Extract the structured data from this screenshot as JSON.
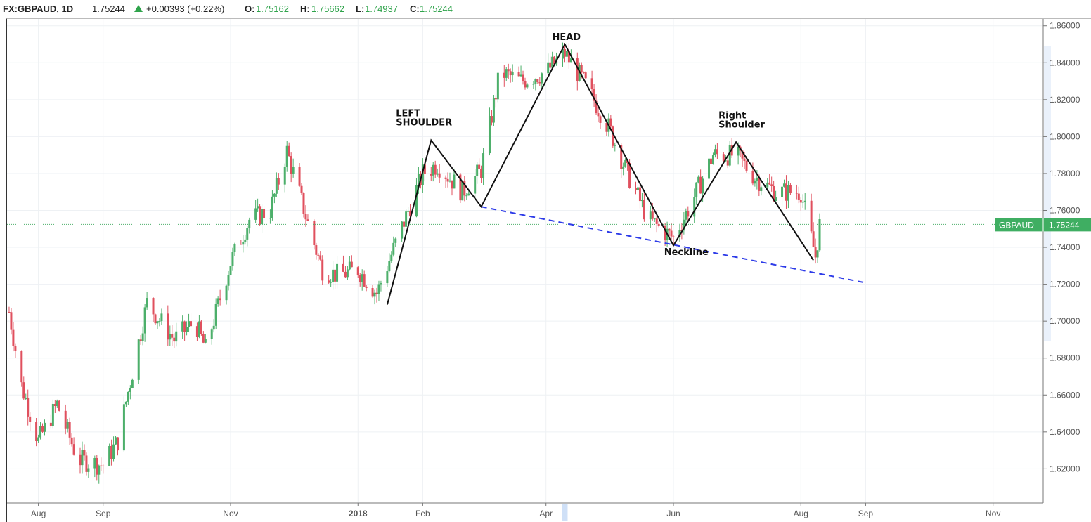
{
  "header": {
    "symbol": "FX:GBPAUD, 1D",
    "last": "1.75244",
    "change": "+0.00393 (+0.22%)",
    "o_label": "O:",
    "o_value": "1.75162",
    "h_label": "H:",
    "h_value": "1.75662",
    "l_label": "L:",
    "l_value": "1.74937",
    "c_label": "C:",
    "c_value": "1.75244"
  },
  "price_tag": {
    "label": "GBPAUD",
    "value": "1.75244"
  },
  "colors": {
    "up": "#4caf6a",
    "down": "#e0505e",
    "neckline": "#2d3be8",
    "grid": "#eef1f4"
  },
  "chart_data": {
    "type": "line",
    "title": "",
    "series": [
      {
        "name": "",
        "x": [
          "2017-07-18",
          "2017-07-24",
          "2017-08-01",
          "2017-08-10",
          "2017-08-20",
          "2017-09-01",
          "2017-09-08",
          "2017-09-22",
          "2017-10-05",
          "2017-10-15",
          "2017-10-20",
          "2017-11-01",
          "2017-11-10",
          "2017-11-20",
          "2017-11-28",
          "2017-12-05",
          "2017-12-10",
          "2017-12-15",
          "2017-12-22",
          "2018-01-01",
          "2018-01-10",
          "2018-01-20",
          "2018-02-01",
          "2018-02-08",
          "2018-02-20",
          "2018-03-01",
          "2018-03-10",
          "2018-03-20",
          "2018-04-01",
          "2018-04-10",
          "2018-04-20",
          "2018-05-01",
          "2018-05-10",
          "2018-05-20",
          "2018-06-01",
          "2018-06-10",
          "2018-06-20",
          "2018-07-01",
          "2018-07-10",
          "2018-07-20",
          "2018-08-01",
          "2018-08-08",
          "2018-08-10"
        ],
        "y": [
          1.705,
          1.665,
          1.635,
          1.655,
          1.625,
          1.622,
          1.635,
          1.71,
          1.69,
          1.7,
          1.685,
          1.732,
          1.755,
          1.76,
          1.792,
          1.765,
          1.745,
          1.728,
          1.725,
          1.728,
          1.715,
          1.745,
          1.78,
          1.785,
          1.77,
          1.782,
          1.835,
          1.83,
          1.835,
          1.845,
          1.828,
          1.805,
          1.78,
          1.755,
          1.745,
          1.765,
          1.79,
          1.79,
          1.778,
          1.77,
          1.77,
          1.735,
          1.752
        ]
      }
    ],
    "xticks": [
      "Aug",
      "Sep",
      "Nov",
      "2018",
      "Feb",
      "Apr",
      "Jun",
      "Aug",
      "Sep",
      "Nov"
    ],
    "yticks": [
      "1.86000",
      "1.84000",
      "1.82000",
      "1.80000",
      "1.78000",
      "1.76000",
      "1.74000",
      "1.72000",
      "1.70000",
      "1.68000",
      "1.66000",
      "1.64000",
      "1.62000"
    ],
    "ylim": [
      1.6015,
      1.8637
    ],
    "current_price": 1.75244,
    "annotations": [
      {
        "label": "LEFT\nSHOULDER",
        "x": "2018-02-05",
        "y": 1.798
      },
      {
        "label": "HEAD",
        "x": "2018-04-10",
        "y": 1.85
      },
      {
        "label": "Right\nShoulder",
        "x": "2018-07-01",
        "y": 1.797
      },
      {
        "label": "Neckline",
        "x": "2018-06-10",
        "y": 1.735
      }
    ],
    "pattern_lines": {
      "zigzag": [
        [
          "2018-01-15",
          1.709
        ],
        [
          "2018-02-05",
          1.798
        ],
        [
          "2018-03-01",
          1.762
        ],
        [
          "2018-04-10",
          1.85
        ],
        [
          "2018-06-01",
          1.741
        ],
        [
          "2018-07-01",
          1.797
        ],
        [
          "2018-08-07",
          1.733
        ]
      ],
      "neckline": [
        [
          "2018-03-01",
          1.762
        ],
        [
          "2018-08-31",
          1.721
        ]
      ]
    }
  }
}
